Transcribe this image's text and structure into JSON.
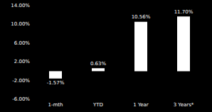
{
  "chart_data": {
    "type": "bar",
    "categories": [
      "1-mth",
      "YTD",
      "1 Year",
      "3 Years*"
    ],
    "values": [
      -1.57,
      0.63,
      10.56,
      11.7
    ],
    "value_labels": [
      "-1.57%",
      "0.63%",
      "10.56%",
      "11.70%"
    ],
    "color": "#ffffff",
    "ylim": [
      -6,
      14
    ],
    "yticks": [
      {
        "value": -6,
        "label": "-6.00%"
      },
      {
        "value": -2,
        "label": "-2.00%"
      },
      {
        "value": 2,
        "label": "2.00%"
      },
      {
        "value": 6,
        "label": "6.00%"
      },
      {
        "value": 10,
        "label": "10.00%"
      },
      {
        "value": 14,
        "label": "14.00%"
      }
    ],
    "grid": false,
    "data_labels": true
  }
}
